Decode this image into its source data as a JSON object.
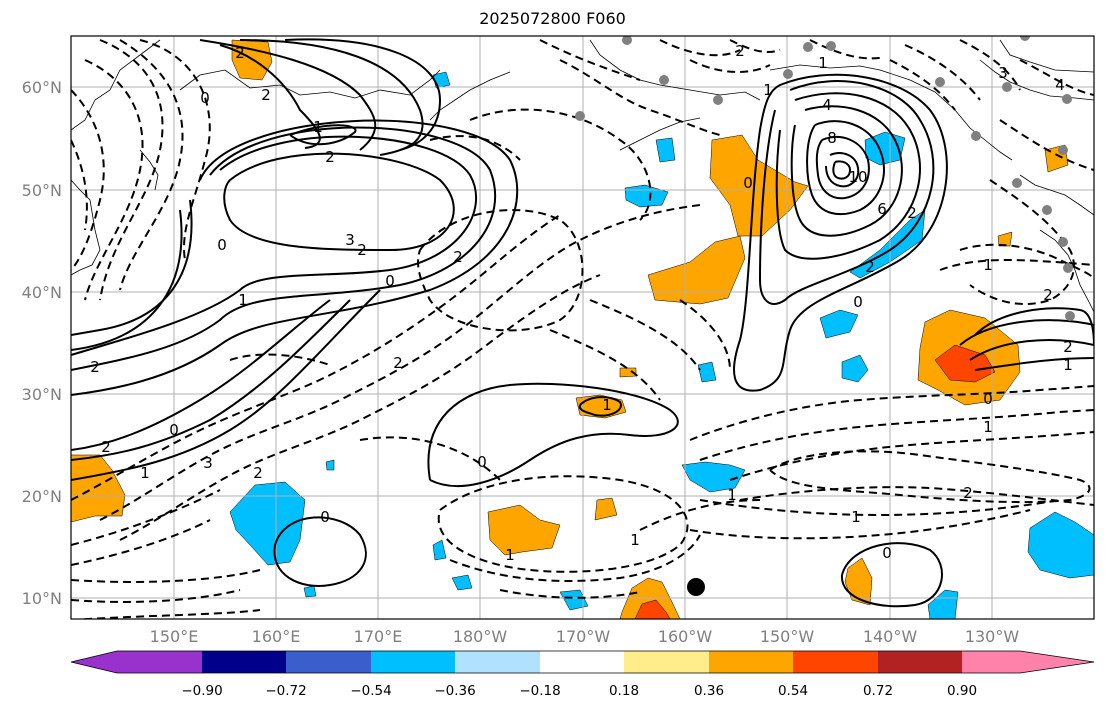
{
  "title": "2025072800 F060",
  "latitude_labels": [
    "60°N",
    "50°N",
    "40°N",
    "30°N",
    "20°N",
    "10°N"
  ],
  "longitude_labels": [
    "150°E",
    "160°E",
    "170°E",
    "180°W",
    "170°W",
    "160°W",
    "150°W",
    "140°W",
    "130°W"
  ],
  "colorbar": {
    "ticks": [
      "−0.90",
      "−0.72",
      "−0.54",
      "−0.36",
      "−0.18",
      "0.18",
      "0.36",
      "0.54",
      "0.72",
      "0.90"
    ],
    "colors": [
      "#9932CC",
      "#00008B",
      "#3A5FCD",
      "#00BFFF",
      "#B0E2FF",
      "#FFFFFF",
      "#FFEC8B",
      "#FFA500",
      "#FF4500",
      "#B22222",
      "#FF82AB"
    ]
  },
  "contour_labels": [
    "2",
    "0",
    "1",
    "2",
    "3",
    "2",
    "1",
    "0",
    "2",
    "2",
    "1",
    "4",
    "8",
    "10",
    "6",
    "2",
    "0",
    "2",
    "0",
    "1",
    "0",
    "2",
    "2",
    "1",
    "2",
    "0",
    "1",
    "2",
    "0",
    "1",
    "3",
    "2",
    "1",
    "0",
    "0",
    "1",
    "1",
    "2",
    "1",
    "0",
    "1",
    "3",
    "4",
    "2",
    "1",
    "2"
  ],
  "fill_colors": {
    "orange": "#FFA500",
    "red": "#FF4500",
    "blue": "#00BFFF"
  }
}
